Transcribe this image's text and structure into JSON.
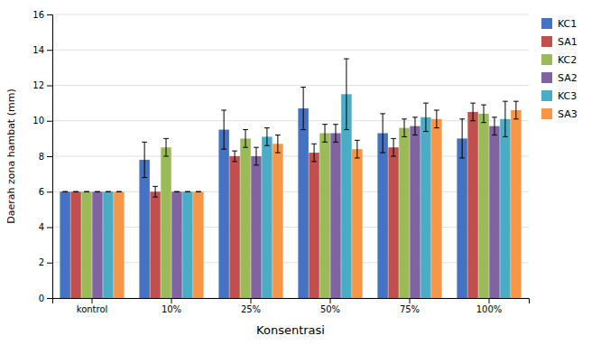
{
  "chart_data": {
    "type": "bar",
    "categories": [
      "kontrol",
      "10%",
      "25%",
      "50%",
      "75%",
      "100%"
    ],
    "series": [
      {
        "name": "KC1",
        "color": "#4472C4",
        "values": [
          6.0,
          7.8,
          9.5,
          10.7,
          9.3,
          9.0
        ],
        "errors": [
          0.0,
          1.0,
          1.1,
          1.2,
          1.1,
          1.1
        ]
      },
      {
        "name": "SA1",
        "color": "#C0504D",
        "values": [
          6.0,
          6.0,
          8.0,
          8.2,
          8.5,
          10.5
        ],
        "errors": [
          0.0,
          0.3,
          0.3,
          0.5,
          0.5,
          0.5
        ]
      },
      {
        "name": "KC2",
        "color": "#9BBB59",
        "values": [
          6.0,
          8.5,
          9.0,
          9.3,
          9.6,
          10.4
        ],
        "errors": [
          0.0,
          0.5,
          0.5,
          0.5,
          0.5,
          0.5
        ]
      },
      {
        "name": "SA2",
        "color": "#8064A2",
        "values": [
          6.0,
          6.0,
          8.0,
          9.3,
          9.7,
          9.7
        ],
        "errors": [
          0.0,
          0.0,
          0.5,
          0.5,
          0.5,
          0.5
        ]
      },
      {
        "name": "KC3",
        "color": "#4BACC6",
        "values": [
          6.0,
          6.0,
          9.1,
          11.5,
          10.2,
          10.1
        ],
        "errors": [
          0.0,
          0.0,
          0.5,
          2.0,
          0.8,
          1.0
        ]
      },
      {
        "name": "SA3",
        "color": "#F79646",
        "values": [
          6.0,
          6.0,
          8.7,
          8.4,
          10.1,
          10.6
        ],
        "errors": [
          0.0,
          0.0,
          0.5,
          0.5,
          0.5,
          0.5
        ]
      }
    ],
    "xlabel": "Konsentrasi",
    "ylabel": "Daerah zona hambat (mm)",
    "ylim": [
      0,
      16
    ],
    "yticks": [
      0,
      2,
      4,
      6,
      8,
      10,
      12,
      14,
      16
    ],
    "grid": true,
    "legend": "right"
  }
}
